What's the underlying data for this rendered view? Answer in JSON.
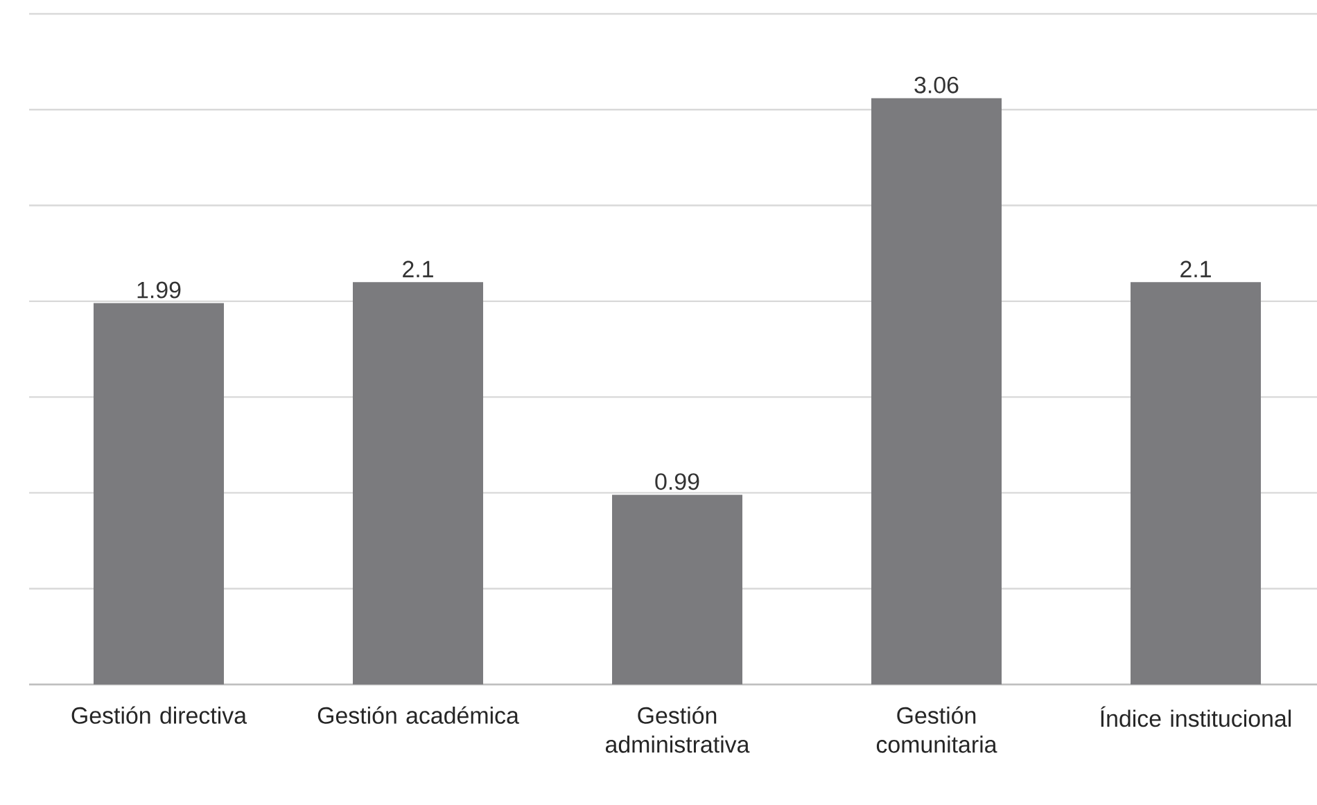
{
  "chart_data": {
    "type": "bar",
    "categories": [
      "Gestión directiva",
      "Gestión académica",
      "Gestión administrativa",
      "Gestión comunitaria",
      "Índice institucional"
    ],
    "values": [
      1.99,
      2.1,
      0.99,
      3.06,
      2.1
    ],
    "color": "#7b7b7e",
    "data_labels": true,
    "ylim": [
      0,
      3.5
    ],
    "yticks": [
      {
        "value": 0,
        "label": null
      },
      {
        "value": 0.5,
        "label": null
      },
      {
        "value": 1,
        "label": null
      },
      {
        "value": 1.5,
        "label": null
      },
      {
        "value": 2,
        "label": null
      },
      {
        "value": 2.5,
        "label": null
      },
      {
        "value": 3,
        "label": null
      },
      {
        "value": 3.5,
        "label": null
      }
    ],
    "grid": "y",
    "tick_labels": "x"
  }
}
